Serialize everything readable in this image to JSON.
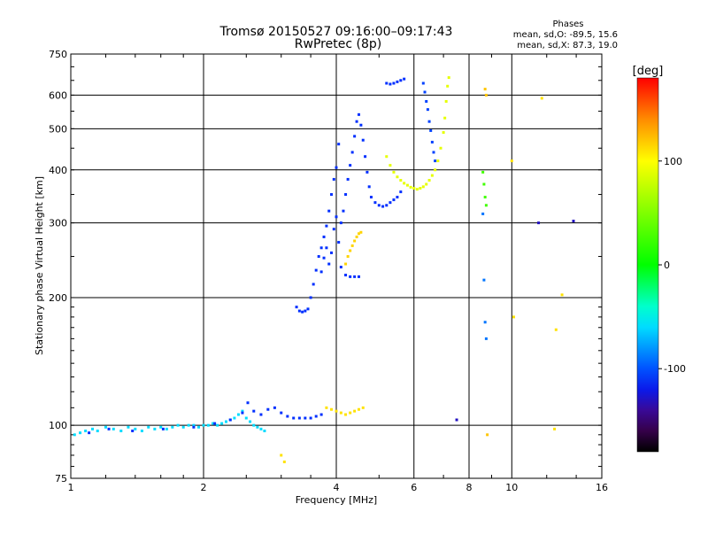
{
  "chart_data": {
    "type": "scatter",
    "title": "Tromsø 20150527 09:16:00–09:17:43",
    "subtitle": "RwPretec (8p)",
    "phases_info": [
      "Phases",
      "mean, sd,O: -89.5, 15.6",
      "mean, sd,X:  87.3, 19.0"
    ],
    "xlabel": "Frequency [MHz]",
    "ylabel": "Stationary phase Virtual Height [km]",
    "x_scale": "log2",
    "y_scale": "log",
    "xlim": [
      1,
      16
    ],
    "ylim": [
      75,
      750
    ],
    "x_ticks": [
      1,
      2,
      4,
      6,
      8,
      10,
      16
    ],
    "x_tick_labels": [
      "1",
      "2",
      "4",
      "6",
      "8",
      "10",
      "16"
    ],
    "y_ticks": [
      75,
      100,
      200,
      300,
      400,
      500,
      600,
      750
    ],
    "y_tick_labels": [
      "75",
      "100",
      "200",
      "300",
      "400",
      "500",
      "600",
      "750"
    ],
    "grid": true,
    "colorbar": {
      "label": "[deg]",
      "min": -180,
      "max": 180,
      "ticks": [
        100,
        0,
        -100
      ],
      "tick_labels": [
        "100",
        "0",
        "-100"
      ]
    },
    "series": [
      {
        "phase": -60,
        "points": [
          [
            1.02,
            95
          ],
          [
            1.05,
            96
          ],
          [
            1.08,
            97
          ],
          [
            1.12,
            98
          ],
          [
            1.15,
            97
          ],
          [
            1.2,
            99
          ],
          [
            1.25,
            98
          ],
          [
            1.3,
            97
          ],
          [
            1.35,
            99
          ],
          [
            1.4,
            98
          ],
          [
            1.45,
            97
          ],
          [
            1.5,
            99
          ],
          [
            1.55,
            98
          ],
          [
            1.6,
            99
          ],
          [
            1.65,
            98
          ],
          [
            1.7,
            99
          ],
          [
            1.75,
            100
          ],
          [
            1.8,
            99
          ],
          [
            1.85,
            100
          ],
          [
            1.9,
            100
          ],
          [
            1.95,
            99
          ],
          [
            2.0,
            100
          ],
          [
            2.05,
            100
          ],
          [
            2.1,
            101
          ],
          [
            2.15,
            100
          ],
          [
            2.2,
            101
          ],
          [
            2.25,
            102
          ],
          [
            2.3,
            103
          ],
          [
            2.35,
            104
          ],
          [
            2.4,
            106
          ],
          [
            2.45,
            108
          ],
          [
            2.5,
            104
          ],
          [
            2.55,
            102
          ],
          [
            2.6,
            100
          ],
          [
            2.65,
            99
          ],
          [
            2.7,
            98
          ],
          [
            2.75,
            97
          ]
        ]
      },
      {
        "phase": -110,
        "points": [
          [
            1.1,
            96
          ],
          [
            1.22,
            98
          ],
          [
            1.38,
            97
          ],
          [
            1.62,
            98
          ],
          [
            1.9,
            99
          ],
          [
            2.12,
            101
          ],
          [
            2.3,
            103
          ],
          [
            2.45,
            107
          ],
          [
            2.52,
            113
          ],
          [
            2.6,
            108
          ],
          [
            2.7,
            106
          ],
          [
            2.8,
            109
          ],
          [
            2.9,
            110
          ],
          [
            3.0,
            107
          ],
          [
            3.1,
            105
          ],
          [
            3.2,
            104
          ],
          [
            3.3,
            104
          ],
          [
            3.4,
            104
          ],
          [
            3.5,
            104
          ],
          [
            3.6,
            105
          ],
          [
            3.7,
            106
          ]
        ]
      },
      {
        "phase": -110,
        "points": [
          [
            3.25,
            190
          ],
          [
            3.3,
            186
          ],
          [
            3.35,
            185
          ],
          [
            3.4,
            186
          ],
          [
            3.45,
            188
          ],
          [
            3.5,
            200
          ],
          [
            3.55,
            215
          ],
          [
            3.6,
            232
          ],
          [
            3.65,
            250
          ],
          [
            3.7,
            262
          ],
          [
            3.75,
            278
          ],
          [
            3.8,
            295
          ],
          [
            3.85,
            320
          ],
          [
            3.9,
            350
          ],
          [
            3.95,
            380
          ],
          [
            4.0,
            405
          ],
          [
            4.05,
            460
          ],
          [
            4.1,
            300
          ],
          [
            4.15,
            320
          ],
          [
            4.2,
            350
          ],
          [
            4.25,
            380
          ],
          [
            4.3,
            410
          ],
          [
            4.35,
            440
          ],
          [
            4.4,
            480
          ],
          [
            4.45,
            520
          ],
          [
            4.5,
            540
          ],
          [
            4.55,
            510
          ],
          [
            4.6,
            470
          ],
          [
            4.65,
            430
          ],
          [
            4.7,
            395
          ],
          [
            4.75,
            365
          ],
          [
            4.8,
            345
          ],
          [
            4.9,
            335
          ],
          [
            5.0,
            330
          ],
          [
            5.1,
            328
          ],
          [
            5.2,
            330
          ],
          [
            5.3,
            335
          ],
          [
            5.4,
            340
          ],
          [
            5.5,
            345
          ],
          [
            5.6,
            355
          ]
        ]
      },
      {
        "phase": -110,
        "points": [
          [
            3.7,
            230
          ],
          [
            3.75,
            248
          ],
          [
            3.8,
            262
          ],
          [
            3.85,
            240
          ],
          [
            3.9,
            255
          ],
          [
            3.95,
            290
          ],
          [
            4.0,
            310
          ],
          [
            4.05,
            270
          ],
          [
            4.1,
            236
          ],
          [
            4.2,
            226
          ],
          [
            4.3,
            224
          ],
          [
            4.4,
            224
          ],
          [
            4.5,
            224
          ]
        ]
      },
      {
        "phase": -110,
        "points": [
          [
            5.2,
            640
          ],
          [
            5.3,
            637
          ],
          [
            5.4,
            640
          ],
          [
            5.5,
            645
          ],
          [
            5.6,
            650
          ],
          [
            5.7,
            655
          ]
        ]
      },
      {
        "phase": -105,
        "points": [
          [
            6.3,
            640
          ],
          [
            6.35,
            610
          ],
          [
            6.4,
            580
          ],
          [
            6.45,
            555
          ],
          [
            6.5,
            520
          ],
          [
            6.55,
            495
          ],
          [
            6.6,
            465
          ],
          [
            6.65,
            440
          ],
          [
            6.7,
            420
          ]
        ]
      },
      {
        "phase": 110,
        "points": [
          [
            3.8,
            110
          ],
          [
            3.9,
            109
          ],
          [
            4.0,
            108
          ],
          [
            4.1,
            107
          ],
          [
            4.2,
            106
          ],
          [
            4.3,
            107
          ],
          [
            4.4,
            108
          ],
          [
            4.5,
            109
          ],
          [
            4.6,
            110
          ]
        ]
      },
      {
        "phase": 115,
        "points": [
          [
            4.2,
            240
          ],
          [
            4.25,
            250
          ],
          [
            4.3,
            258
          ],
          [
            4.35,
            265
          ],
          [
            4.4,
            272
          ],
          [
            4.45,
            278
          ],
          [
            4.5,
            283
          ],
          [
            4.55,
            285
          ]
        ]
      },
      {
        "phase": 90,
        "points": [
          [
            5.2,
            430
          ],
          [
            5.3,
            410
          ],
          [
            5.4,
            395
          ],
          [
            5.5,
            385
          ],
          [
            5.6,
            378
          ],
          [
            5.7,
            372
          ],
          [
            5.8,
            368
          ],
          [
            5.9,
            364
          ],
          [
            6.0,
            362
          ],
          [
            6.1,
            360
          ],
          [
            6.2,
            362
          ],
          [
            6.3,
            365
          ],
          [
            6.4,
            370
          ],
          [
            6.5,
            378
          ],
          [
            6.6,
            388
          ],
          [
            6.7,
            400
          ],
          [
            6.8,
            420
          ],
          [
            6.9,
            450
          ],
          [
            7.0,
            490
          ],
          [
            7.05,
            530
          ],
          [
            7.1,
            580
          ],
          [
            7.15,
            630
          ],
          [
            7.2,
            660
          ]
        ]
      },
      {
        "phase": -90,
        "points": [
          [
            8.6,
            315
          ],
          [
            8.65,
            220
          ],
          [
            8.7,
            175
          ],
          [
            8.75,
            160
          ]
        ]
      },
      {
        "phase": 25,
        "points": [
          [
            8.6,
            395
          ],
          [
            8.65,
            370
          ],
          [
            8.7,
            345
          ],
          [
            8.75,
            330
          ]
        ]
      },
      {
        "phase": 120,
        "points": [
          [
            8.7,
            620
          ],
          [
            8.75,
            600
          ],
          [
            8.8,
            95
          ]
        ]
      },
      {
        "phase": 110,
        "points": [
          [
            10.0,
            420
          ],
          [
            10.1,
            180
          ],
          [
            11.7,
            590
          ],
          [
            12.5,
            98
          ],
          [
            12.6,
            168
          ],
          [
            13.0,
            203
          ]
        ]
      },
      {
        "phase": -130,
        "points": [
          [
            11.5,
            300
          ],
          [
            13.8,
            303
          ],
          [
            7.5,
            103
          ]
        ]
      },
      {
        "phase": 110,
        "points": [
          [
            3.0,
            85
          ],
          [
            3.05,
            82
          ]
        ]
      }
    ]
  }
}
